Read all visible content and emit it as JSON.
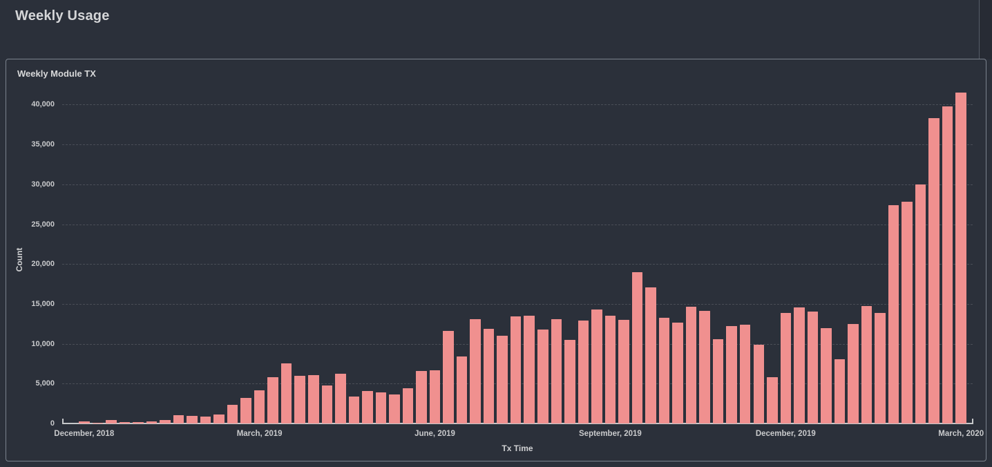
{
  "page": {
    "title": "Weekly Usage"
  },
  "panel": {
    "title": "Weekly Module TX"
  },
  "colors": {
    "background": "#2b303a",
    "panel_border": "#7c838e",
    "bar_fill": "#f0908f",
    "text_primary": "#d8d9da",
    "text_tick": "#c9cacc",
    "gridline": "rgba(255,255,255,0.15)",
    "axis_line": "#c6c8ca"
  },
  "chart_data": {
    "type": "bar",
    "title": "Weekly Module TX",
    "xlabel": "Tx Time",
    "ylabel": "Count",
    "ylim": [
      0,
      42000
    ],
    "grid": "horizontal-dashed",
    "legend": "none",
    "x_unit": "week",
    "y_ticks": [
      0,
      5000,
      10000,
      15000,
      20000,
      25000,
      30000,
      35000,
      40000
    ],
    "y_tick_labels": [
      "0",
      "5,000",
      "10,000",
      "15,000",
      "20,000",
      "25,000",
      "30,000",
      "35,000",
      "40,000"
    ],
    "x_tick_bar_indexes": [
      0,
      13,
      26,
      39,
      52,
      65
    ],
    "x_tick_labels": [
      "December, 2018",
      "March, 2019",
      "June, 2019",
      "September, 2019",
      "December, 2019",
      "March, 2020"
    ],
    "values": [
      300,
      100,
      400,
      150,
      200,
      250,
      450,
      1000,
      950,
      900,
      1150,
      2300,
      3200,
      4200,
      5800,
      7500,
      6000,
      6100,
      4800,
      6200,
      3400,
      4050,
      3900,
      3600,
      4450,
      6600,
      6700,
      11600,
      8400,
      13100,
      11900,
      11000,
      13400,
      13500,
      11800,
      13100,
      10500,
      12900,
      14300,
      13500,
      13000,
      19000,
      17100,
      13250,
      12650,
      14650,
      14100,
      10600,
      12200,
      12400,
      9900,
      5800,
      13900,
      14600,
      14000,
      12000,
      8100,
      12500,
      14700,
      13900,
      27400,
      27800,
      30000,
      38300,
      39800,
      41500
    ]
  }
}
